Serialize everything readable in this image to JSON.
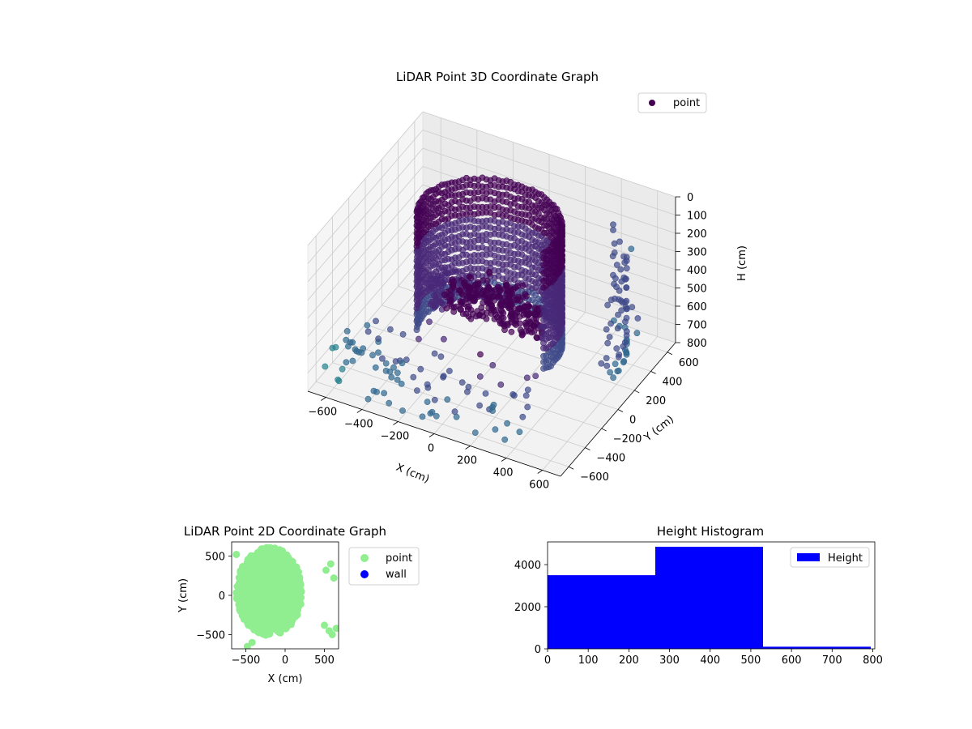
{
  "colors": {
    "viridis_dark": "#440154",
    "viridis_purple": "#482878",
    "viridis_blue": "#3e4a89",
    "viridis_teal": "#31688e",
    "viridis_cyan": "#26828e",
    "point_2d": "#90ee90",
    "wall_2d": "#0000ff",
    "histogram": "#0000ff",
    "pane": "#f2f2f2",
    "grid": "#cccccc"
  },
  "chart_data": [
    {
      "type": "scatter",
      "title": "LiDAR Point 3D Coordinate Graph",
      "xlabel": "X (cm)",
      "ylabel": "Y (cm)",
      "zlabel": "H (cm)",
      "x_ticks": [
        "−600",
        "−400",
        "−200",
        "0",
        "200",
        "400",
        "600"
      ],
      "y_ticks": [
        "−600",
        "−400",
        "−200",
        "0",
        "200",
        "400",
        "600"
      ],
      "z_ticks": [
        "0",
        "100",
        "200",
        "300",
        "400",
        "500",
        "600",
        "700",
        "800"
      ],
      "xlim": [
        -700,
        700
      ],
      "ylim": [
        -700,
        700
      ],
      "zlim": [
        0,
        800
      ],
      "z_inverted": true,
      "grid": true,
      "legend": {
        "placement": "upper-right",
        "entries": [
          "point"
        ]
      },
      "series": [
        {
          "name": "point",
          "description_points": {
            "wall_arc": {
              "center": [
                0,
                0
              ],
              "radius": 350,
              "angle_range_deg": [
                -10,
                190
              ],
              "height_range": [
                0,
                700
              ]
            },
            "interior_fill": {
              "height_range": [
                400,
                650
              ]
            },
            "outliers": [
              [
                -650,
                -600,
                700
              ],
              [
                -600,
                -500,
                750
              ],
              [
                -550,
                -650,
                720
              ],
              [
                500,
                600,
                300
              ],
              [
                550,
                500,
                550
              ],
              [
                600,
                450,
                650
              ],
              [
                400,
                600,
                200
              ],
              [
                650,
                350,
                500
              ],
              [
                -400,
                -200,
                650
              ],
              [
                -300,
                -100,
                600
              ]
            ]
          }
        }
      ]
    },
    {
      "type": "scatter",
      "title": "LiDAR Point 2D Coordinate Graph",
      "xlabel": "X (cm)",
      "ylabel": "Y (cm)",
      "x_ticks": [
        "−500",
        "0",
        "500"
      ],
      "y_ticks": [
        "−500",
        "0",
        "500"
      ],
      "xlim": [
        -680,
        680
      ],
      "ylim": [
        -680,
        680
      ],
      "legend": {
        "placement": "outside-right",
        "entries": [
          "point",
          "wall"
        ]
      },
      "series": [
        {
          "name": "point"
        },
        {
          "name": "wall"
        }
      ]
    },
    {
      "type": "bar",
      "title": "Height Histogram",
      "x_ticks": [
        "0",
        "100",
        "200",
        "300",
        "400",
        "500",
        "600",
        "700",
        "800"
      ],
      "y_ticks": [
        "0",
        "2000",
        "4000"
      ],
      "xlim": [
        0,
        805
      ],
      "ylim": [
        0,
        5080
      ],
      "legend": {
        "placement": "upper-right",
        "entries": [
          "Height"
        ]
      },
      "bins": [
        {
          "start": 0,
          "end": 265,
          "count": 3500
        },
        {
          "start": 265,
          "end": 530,
          "count": 4850
        },
        {
          "start": 530,
          "end": 795,
          "count": 100
        }
      ],
      "series": [
        {
          "name": "Height"
        }
      ]
    }
  ]
}
